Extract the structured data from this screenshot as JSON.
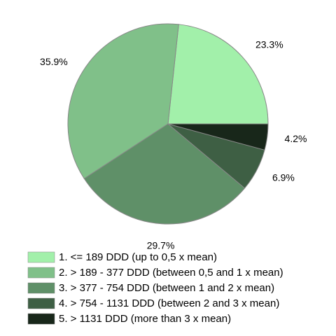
{
  "chart_data": {
    "type": "pie",
    "categories": [
      "1. <= 189 DDD (up to 0,5 x mean)",
      "2. > 189 - 377 DDD (between 0,5 and 1 x mean)",
      "3. > 377 - 754 DDD (between 1 and 2 x mean)",
      "4. > 754 - 1131 DDD (between 2 and 3 x mean)",
      "5. > 1131 DDD (more than 3 x mean)"
    ],
    "values": [
      23.3,
      35.9,
      29.7,
      6.9,
      4.2
    ],
    "value_labels": [
      "23.3%",
      "35.9%",
      "29.7%",
      "6.9%",
      "4.2%"
    ],
    "colors": [
      "#a2f0aa",
      "#80c089",
      "#5f9068",
      "#3e5f44",
      "#18271a"
    ]
  }
}
